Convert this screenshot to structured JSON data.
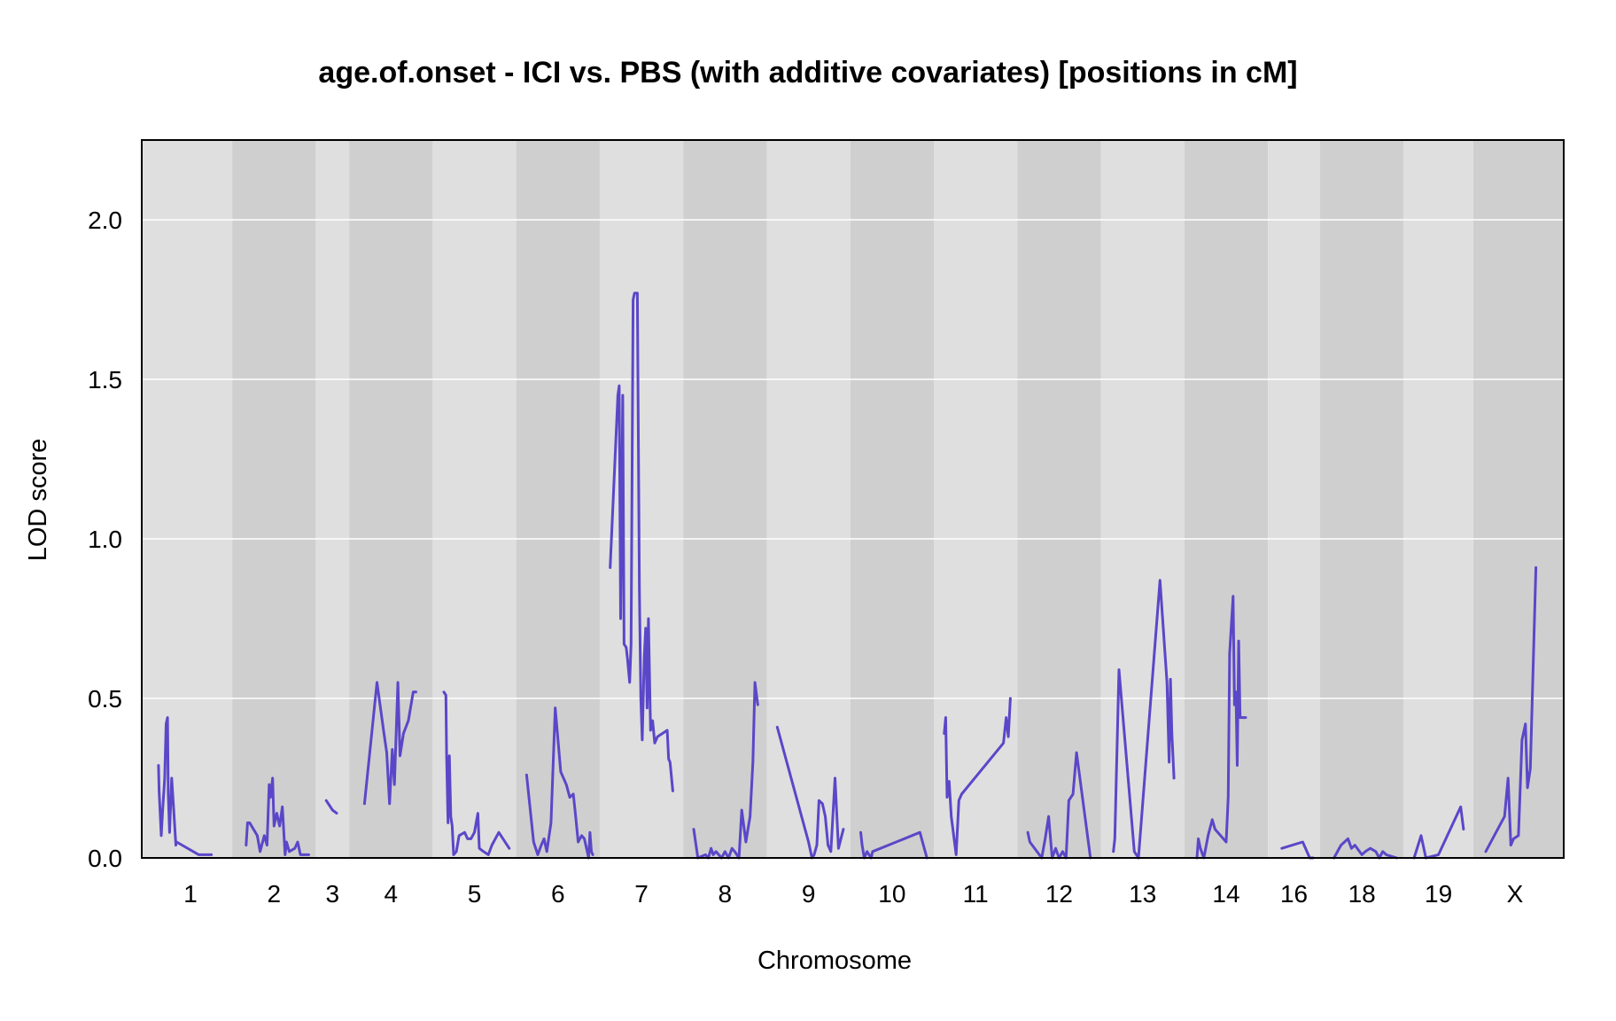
{
  "chart_data": {
    "type": "line",
    "title": "age.of.onset - ICI vs. PBS (with additive covariates) [positions in cM]",
    "xlabel": "Chromosome",
    "ylabel": "LOD score",
    "ylim": [
      0,
      2.25
    ],
    "yticks": [
      "0.0",
      "0.5",
      "1.0",
      "1.5",
      "2.0"
    ],
    "grid": true,
    "colors": {
      "line": "#5a47c8",
      "band_light": "#dfdfdf",
      "band_dark": "#cfcfcf",
      "gridline": "#ffffff",
      "frame": "#000000"
    },
    "chromosomes": [
      {
        "label": "1",
        "length": 100
      },
      {
        "label": "2",
        "length": 100
      },
      {
        "label": "3",
        "length": 28
      },
      {
        "label": "4",
        "length": 100
      },
      {
        "label": "5",
        "length": 100
      },
      {
        "label": "6",
        "length": 100
      },
      {
        "label": "7",
        "length": 100
      },
      {
        "label": "8",
        "length": 100
      },
      {
        "label": "9",
        "length": 100
      },
      {
        "label": "10",
        "length": 100
      },
      {
        "label": "11",
        "length": 100
      },
      {
        "label": "12",
        "length": 100
      },
      {
        "label": "13",
        "length": 100
      },
      {
        "label": "14",
        "length": 100
      },
      {
        "label": "16",
        "length": 55
      },
      {
        "label": "18",
        "length": 100
      },
      {
        "label": "19",
        "length": 80
      },
      {
        "label": "X",
        "length": 100
      }
    ],
    "series": [
      {
        "chr": "1",
        "segments": [
          [
            [
              4,
              0.29
            ],
            [
              5,
              0.21
            ],
            [
              8,
              0.07
            ],
            [
              10,
              0.15
            ],
            [
              13,
              0.25
            ],
            [
              15,
              0.42
            ],
            [
              17,
              0.44
            ],
            [
              18,
              0.2
            ],
            [
              20,
              0.08
            ],
            [
              23,
              0.25
            ],
            [
              26,
              0.15
            ],
            [
              29,
              0.04
            ],
            [
              30,
              0.05
            ],
            [
              62,
              0.01
            ],
            [
              80,
              0.01
            ]
          ]
        ]
      },
      {
        "chr": "2",
        "segments": [
          [
            [
              10,
              0.04
            ],
            [
              12,
              0.11
            ],
            [
              15,
              0.11
            ],
            [
              26,
              0.07
            ],
            [
              30,
              0.02
            ],
            [
              36,
              0.07
            ],
            [
              40,
              0.04
            ],
            [
              43,
              0.23
            ],
            [
              45,
              0.19
            ],
            [
              48,
              0.25
            ],
            [
              50,
              0.1
            ],
            [
              54,
              0.14
            ],
            [
              58,
              0.1
            ],
            [
              62,
              0.16
            ],
            [
              66,
              0.01
            ],
            [
              68,
              0.05
            ],
            [
              72,
              0.02
            ],
            [
              80,
              0.03
            ],
            [
              84,
              0.05
            ],
            [
              88,
              0.01
            ],
            [
              95,
              0.01
            ],
            [
              100,
              0.01
            ]
          ]
        ]
      },
      {
        "chr": "3",
        "segments": [
          [
            [
              5,
              0.18
            ],
            [
              14,
              0.15
            ],
            [
              20,
              0.14
            ]
          ]
        ]
      },
      {
        "chr": "4",
        "segments": [
          [
            [
              12,
              0.17
            ],
            [
              30,
              0.55
            ],
            [
              40,
              0.39
            ],
            [
              44,
              0.33
            ],
            [
              48,
              0.17
            ],
            [
              52,
              0.34
            ],
            [
              55,
              0.23
            ],
            [
              60,
              0.55
            ],
            [
              63,
              0.32
            ],
            [
              68,
              0.39
            ],
            [
              75,
              0.43
            ],
            [
              82,
              0.52
            ],
            [
              86,
              0.52
            ]
          ]
        ]
      },
      {
        "chr": "5",
        "segments": [
          [
            [
              6,
              0.52
            ],
            [
              9,
              0.51
            ],
            [
              10,
              0.32
            ],
            [
              12,
              0.11
            ],
            [
              14,
              0.32
            ],
            [
              16,
              0.13
            ],
            [
              18,
              0.1
            ],
            [
              20,
              0.01
            ],
            [
              24,
              0.02
            ],
            [
              28,
              0.07
            ],
            [
              36,
              0.08
            ],
            [
              40,
              0.06
            ],
            [
              45,
              0.06
            ],
            [
              50,
              0.08
            ],
            [
              55,
              0.14
            ],
            [
              57,
              0.03
            ],
            [
              63,
              0.02
            ],
            [
              70,
              0.01
            ],
            [
              75,
              0.04
            ],
            [
              85,
              0.08
            ],
            [
              100,
              0.03
            ]
          ]
        ]
      },
      {
        "chr": "6",
        "segments": [
          [
            [
              5,
              0.26
            ],
            [
              15,
              0.05
            ],
            [
              21,
              0.01
            ],
            [
              26,
              0.04
            ],
            [
              30,
              0.06
            ],
            [
              34,
              0.02
            ],
            [
              40,
              0.11
            ],
            [
              46,
              0.47
            ],
            [
              54,
              0.27
            ],
            [
              62,
              0.23
            ],
            [
              67,
              0.19
            ],
            [
              72,
              0.2
            ],
            [
              75,
              0.14
            ],
            [
              79,
              0.05
            ],
            [
              84,
              0.07
            ],
            [
              88,
              0.06
            ],
            [
              94,
              0.0
            ],
            [
              96,
              0.08
            ],
            [
              98,
              0.02
            ],
            [
              100,
              0.01
            ]
          ]
        ]
      },
      {
        "chr": "7",
        "segments": [
          [
            [
              5,
              0.91
            ],
            [
              16,
              1.45
            ],
            [
              18,
              1.48
            ],
            [
              20,
              0.75
            ],
            [
              23,
              1.45
            ],
            [
              25,
              0.67
            ],
            [
              28,
              0.66
            ],
            [
              30,
              0.62
            ],
            [
              33,
              0.55
            ],
            [
              35,
              0.67
            ],
            [
              38,
              1.75
            ],
            [
              40,
              1.77
            ],
            [
              44,
              1.77
            ],
            [
              47,
              0.84
            ],
            [
              49,
              0.5
            ],
            [
              51,
              0.37
            ],
            [
              54,
              0.63
            ],
            [
              56,
              0.72
            ],
            [
              58,
              0.47
            ],
            [
              60,
              0.75
            ],
            [
              63,
              0.4
            ],
            [
              66,
              0.43
            ],
            [
              69,
              0.36
            ],
            [
              73,
              0.38
            ],
            [
              87,
              0.4
            ],
            [
              89,
              0.31
            ],
            [
              91,
              0.3
            ],
            [
              95,
              0.21
            ]
          ]
        ]
      },
      {
        "chr": "8",
        "segments": [
          [
            [
              5,
              0.09
            ],
            [
              11,
              0.0
            ],
            [
              22,
              0.01
            ],
            [
              26,
              0.0
            ],
            [
              30,
              0.03
            ],
            [
              33,
              0.01
            ],
            [
              37,
              0.02
            ],
            [
              45,
              0.0
            ],
            [
              50,
              0.02
            ],
            [
              55,
              0.0
            ],
            [
              60,
              0.03
            ],
            [
              64,
              0.02
            ],
            [
              70,
              0.0
            ],
            [
              74,
              0.15
            ],
            [
              80,
              0.05
            ],
            [
              86,
              0.13
            ],
            [
              90,
              0.3
            ],
            [
              93,
              0.55
            ],
            [
              97,
              0.48
            ]
          ]
        ]
      },
      {
        "chr": "9",
        "segments": [
          [
            [
              5,
              0.41
            ],
            [
              50,
              0.05
            ],
            [
              55,
              0.0
            ],
            [
              58,
              0.01
            ],
            [
              62,
              0.04
            ],
            [
              65,
              0.18
            ],
            [
              70,
              0.17
            ],
            [
              74,
              0.13
            ],
            [
              78,
              0.04
            ],
            [
              82,
              0.02
            ],
            [
              88,
              0.25
            ],
            [
              93,
              0.03
            ],
            [
              100,
              0.09
            ]
          ]
        ]
      },
      {
        "chr": "10",
        "segments": [
          [
            [
              5,
              0.08
            ],
            [
              7,
              0.04
            ],
            [
              10,
              0.0
            ],
            [
              14,
              0.02
            ],
            [
              20,
              0.0
            ],
            [
              22,
              0.02
            ],
            [
              90,
              0.08
            ],
            [
              100,
              0.0
            ]
          ]
        ]
      },
      {
        "chr": "11",
        "segments": [
          [
            [
              5,
              0.39
            ],
            [
              7,
              0.44
            ],
            [
              9,
              0.19
            ],
            [
              12,
              0.24
            ],
            [
              15,
              0.13
            ],
            [
              22,
              0.01
            ],
            [
              26,
              0.18
            ],
            [
              30,
              0.2
            ],
            [
              90,
              0.36
            ],
            [
              94,
              0.44
            ],
            [
              97,
              0.38
            ],
            [
              100,
              0.5
            ]
          ]
        ]
      },
      {
        "chr": "12",
        "segments": [
          [
            [
              5,
              0.08
            ],
            [
              8,
              0.05
            ],
            [
              25,
              0.0
            ],
            [
              30,
              0.06
            ],
            [
              35,
              0.13
            ],
            [
              40,
              0.0
            ],
            [
              45,
              0.03
            ],
            [
              50,
              0.0
            ],
            [
              55,
              0.02
            ],
            [
              60,
              0.0
            ],
            [
              64,
              0.18
            ],
            [
              70,
              0.2
            ],
            [
              75,
              0.33
            ],
            [
              95,
              0.0
            ]
          ]
        ]
      },
      {
        "chr": "13",
        "segments": [
          [
            [
              8,
              0.02
            ],
            [
              10,
              0.06
            ],
            [
              16,
              0.59
            ],
            [
              38,
              0.02
            ],
            [
              44,
              0.0
            ],
            [
              75,
              0.87
            ],
            [
              85,
              0.55
            ],
            [
              88,
              0.3
            ],
            [
              90,
              0.56
            ],
            [
              92,
              0.39
            ],
            [
              95,
              0.25
            ]
          ]
        ]
      },
      {
        "chr": "14",
        "segments": [
          [
            [
              8,
              0.0
            ],
            [
              10,
              0.06
            ],
            [
              13,
              0.03
            ],
            [
              18,
              0.0
            ],
            [
              24,
              0.07
            ],
            [
              30,
              0.12
            ],
            [
              34,
              0.09
            ],
            [
              50,
              0.05
            ],
            [
              53,
              0.19
            ],
            [
              55,
              0.64
            ],
            [
              60,
              0.82
            ],
            [
              62,
              0.48
            ],
            [
              64,
              0.52
            ],
            [
              66,
              0.29
            ],
            [
              68,
              0.68
            ],
            [
              70,
              0.44
            ],
            [
              78,
              0.44
            ]
          ]
        ]
      },
      {
        "chr": "16",
        "segments": [
          [
            [
              10,
              0.03
            ],
            [
              40,
              0.05
            ],
            [
              50,
              0.0
            ],
            [
              55,
              0.0
            ]
          ]
        ]
      },
      {
        "chr": "18",
        "segments": [
          [
            [
              10,
              0.0
            ],
            [
              20,
              0.04
            ],
            [
              30,
              0.06
            ],
            [
              35,
              0.03
            ],
            [
              40,
              0.04
            ],
            [
              50,
              0.01
            ],
            [
              55,
              0.02
            ],
            [
              62,
              0.03
            ],
            [
              70,
              0.02
            ],
            [
              75,
              0.0
            ],
            [
              80,
              0.02
            ],
            [
              85,
              0.01
            ],
            [
              100,
              0.0
            ]
          ]
        ]
      },
      {
        "chr": "19",
        "segments": [
          [
            [
              5,
              0.0
            ],
            [
              15,
              0.07
            ],
            [
              22,
              0.0
            ],
            [
              40,
              0.01
            ],
            [
              72,
              0.16
            ],
            [
              76,
              0.09
            ]
          ]
        ]
      },
      {
        "chr": "X",
        "segments": [
          [
            [
              8,
              0.02
            ],
            [
              35,
              0.13
            ],
            [
              40,
              0.25
            ],
            [
              44,
              0.04
            ],
            [
              48,
              0.06
            ],
            [
              55,
              0.07
            ],
            [
              60,
              0.37
            ],
            [
              65,
              0.42
            ],
            [
              68,
              0.22
            ],
            [
              72,
              0.28
            ],
            [
              80,
              0.91
            ]
          ]
        ]
      }
    ]
  }
}
